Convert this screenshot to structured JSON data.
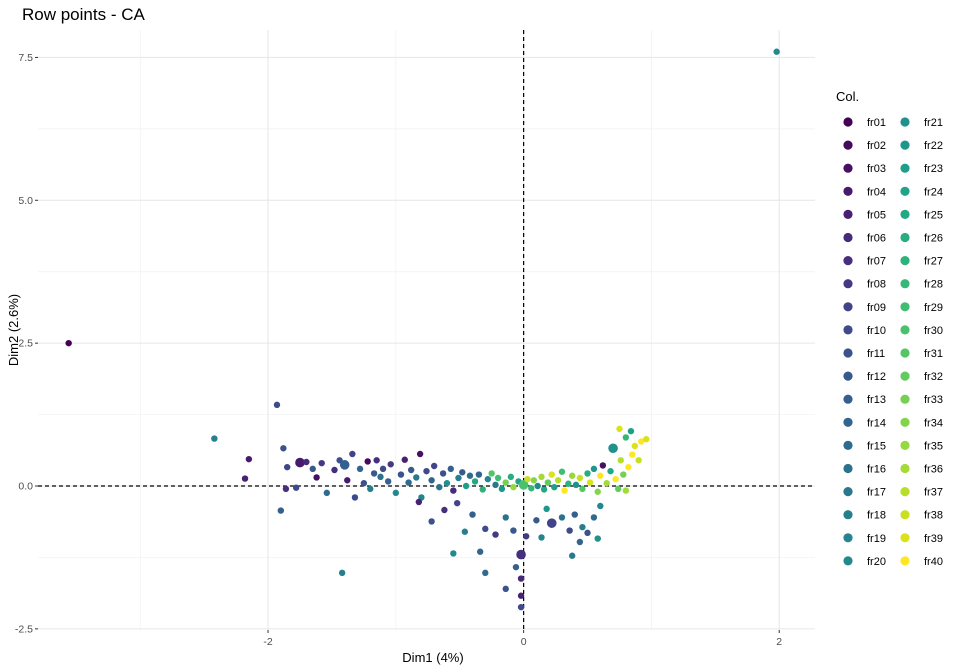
{
  "chart_data": {
    "type": "scatter",
    "title": "Row points - CA",
    "xlabel": "Dim1 (4%)",
    "ylabel": "Dim2 (2.6%)",
    "xlim": [
      -3.8,
      2.28
    ],
    "ylim": [
      -2.52,
      7.98
    ],
    "x_ticks": [
      {
        "value": -2,
        "label": "-2"
      },
      {
        "value": 0,
        "label": "0"
      },
      {
        "value": 2,
        "label": "2"
      }
    ],
    "y_ticks": [
      {
        "value": -2.5,
        "label": "-2.5"
      },
      {
        "value": 0,
        "label": "0.0"
      },
      {
        "value": 2.5,
        "label": "2.5"
      },
      {
        "value": 5,
        "label": "5.0"
      },
      {
        "value": 7.5,
        "label": "7.5"
      }
    ],
    "reference_lines": {
      "x": 0,
      "y": 0,
      "style": "dashed"
    },
    "grid": true,
    "legend": {
      "title": "Col.",
      "placement": "right",
      "columns": 2,
      "entries": [
        {
          "label": "fr01",
          "color": "#440154"
        },
        {
          "label": "fr02",
          "color": "#450b5a"
        },
        {
          "label": "fr03",
          "color": "#471163"
        },
        {
          "label": "fr04",
          "color": "#481a6c"
        },
        {
          "label": "fr05",
          "color": "#482173"
        },
        {
          "label": "fr06",
          "color": "#472a7a"
        },
        {
          "label": "fr07",
          "color": "#46307e"
        },
        {
          "label": "fr08",
          "color": "#443983"
        },
        {
          "label": "fr09",
          "color": "#414487"
        },
        {
          "label": "fr10",
          "color": "#3e4a89"
        },
        {
          "label": "fr11",
          "color": "#3b528b"
        },
        {
          "label": "fr12",
          "color": "#38598c"
        },
        {
          "label": "fr13",
          "color": "#355f8d"
        },
        {
          "label": "fr14",
          "color": "#32658e"
        },
        {
          "label": "fr15",
          "color": "#2f6b8e"
        },
        {
          "label": "fr16",
          "color": "#2c728e"
        },
        {
          "label": "fr17",
          "color": "#2a788e"
        },
        {
          "label": "fr18",
          "color": "#277f8e"
        },
        {
          "label": "fr19",
          "color": "#25848e"
        },
        {
          "label": "fr20",
          "color": "#228a8d"
        },
        {
          "label": "fr21",
          "color": "#21918c"
        },
        {
          "label": "fr22",
          "color": "#1f968b"
        },
        {
          "label": "fr23",
          "color": "#1f9e89"
        },
        {
          "label": "fr24",
          "color": "#20a386"
        },
        {
          "label": "fr25",
          "color": "#22a884"
        },
        {
          "label": "fr26",
          "color": "#27ad81"
        },
        {
          "label": "fr27",
          "color": "#2db27d"
        },
        {
          "label": "fr28",
          "color": "#35b779"
        },
        {
          "label": "fr29",
          "color": "#40bd72"
        },
        {
          "label": "fr30",
          "color": "#4ac16d"
        },
        {
          "label": "fr31",
          "color": "#55c667"
        },
        {
          "label": "fr32",
          "color": "#62cb5f"
        },
        {
          "label": "fr33",
          "color": "#75d054"
        },
        {
          "label": "fr34",
          "color": "#84d44b"
        },
        {
          "label": "fr35",
          "color": "#95d840"
        },
        {
          "label": "fr36",
          "color": "#a5db36"
        },
        {
          "label": "fr37",
          "color": "#b8de29"
        },
        {
          "label": "fr38",
          "color": "#c8e020"
        },
        {
          "label": "fr39",
          "color": "#dae319"
        },
        {
          "label": "fr40",
          "color": "#fde725"
        }
      ]
    },
    "points": [
      {
        "x": 1.98,
        "y": 7.6,
        "c": 19,
        "s": 1
      },
      {
        "x": -3.56,
        "y": 2.5,
        "c": 0,
        "s": 1
      },
      {
        "x": -1.93,
        "y": 1.42,
        "c": 9,
        "s": 1
      },
      {
        "x": -2.42,
        "y": 0.83,
        "c": 17,
        "s": 1
      },
      {
        "x": -1.88,
        "y": 0.66,
        "c": 10,
        "s": 1
      },
      {
        "x": -2.15,
        "y": 0.47,
        "c": 3,
        "s": 1
      },
      {
        "x": -2.18,
        "y": 0.13,
        "c": 4,
        "s": 1
      },
      {
        "x": -1.9,
        "y": -0.43,
        "c": 12,
        "s": 1
      },
      {
        "x": -1.86,
        "y": -0.05,
        "c": 6,
        "s": 1
      },
      {
        "x": -1.85,
        "y": 0.33,
        "c": 8,
        "s": 1
      },
      {
        "x": -1.78,
        "y": -0.03,
        "c": 9,
        "s": 1
      },
      {
        "x": -1.75,
        "y": 0.41,
        "c": 3,
        "s": 2
      },
      {
        "x": -1.7,
        "y": 0.42,
        "c": 5,
        "s": 1
      },
      {
        "x": -1.65,
        "y": 0.3,
        "c": 11,
        "s": 1
      },
      {
        "x": -1.62,
        "y": 0.15,
        "c": 2,
        "s": 1
      },
      {
        "x": -1.58,
        "y": 0.4,
        "c": 7,
        "s": 1
      },
      {
        "x": -1.54,
        "y": -0.12,
        "c": 14,
        "s": 1
      },
      {
        "x": -1.48,
        "y": 0.28,
        "c": 6,
        "s": 1
      },
      {
        "x": -1.44,
        "y": 0.45,
        "c": 10,
        "s": 1
      },
      {
        "x": -1.4,
        "y": 0.37,
        "c": 12,
        "s": 2
      },
      {
        "x": -1.38,
        "y": 0.1,
        "c": 3,
        "s": 1
      },
      {
        "x": -1.34,
        "y": 0.56,
        "c": 8,
        "s": 1
      },
      {
        "x": -1.32,
        "y": -0.2,
        "c": 9,
        "s": 1
      },
      {
        "x": -1.28,
        "y": 0.3,
        "c": 13,
        "s": 1
      },
      {
        "x": -1.25,
        "y": 0.05,
        "c": 10,
        "s": 1
      },
      {
        "x": -1.22,
        "y": 0.43,
        "c": 1,
        "s": 1
      },
      {
        "x": -1.2,
        "y": -0.05,
        "c": 17,
        "s": 1
      },
      {
        "x": -1.17,
        "y": 0.22,
        "c": 11,
        "s": 1
      },
      {
        "x": -1.15,
        "y": 0.45,
        "c": 6,
        "s": 1
      },
      {
        "x": -1.12,
        "y": 0.16,
        "c": 15,
        "s": 1
      },
      {
        "x": -1.1,
        "y": 0.3,
        "c": 9,
        "s": 1
      },
      {
        "x": -1.06,
        "y": 0.08,
        "c": 12,
        "s": 1
      },
      {
        "x": -1.04,
        "y": 0.38,
        "c": 7,
        "s": 1
      },
      {
        "x": -1.0,
        "y": -0.12,
        "c": 19,
        "s": 1
      },
      {
        "x": -0.96,
        "y": 0.2,
        "c": 10,
        "s": 1
      },
      {
        "x": -0.93,
        "y": 0.46,
        "c": 4,
        "s": 1
      },
      {
        "x": -0.9,
        "y": 0.06,
        "c": 14,
        "s": 1
      },
      {
        "x": -0.88,
        "y": 0.28,
        "c": 11,
        "s": 1
      },
      {
        "x": -0.84,
        "y": 0.15,
        "c": 16,
        "s": 1
      },
      {
        "x": -0.81,
        "y": 0.56,
        "c": 2,
        "s": 1
      },
      {
        "x": -0.8,
        "y": -0.2,
        "c": 18,
        "s": 1
      },
      {
        "x": -0.76,
        "y": 0.26,
        "c": 9,
        "s": 1
      },
      {
        "x": -0.72,
        "y": 0.1,
        "c": 13,
        "s": 1
      },
      {
        "x": -0.7,
        "y": 0.35,
        "c": 8,
        "s": 1
      },
      {
        "x": -0.66,
        "y": -0.02,
        "c": 15,
        "s": 1
      },
      {
        "x": -0.63,
        "y": 0.22,
        "c": 10,
        "s": 1
      },
      {
        "x": -0.6,
        "y": 0.05,
        "c": 20,
        "s": 1
      },
      {
        "x": -0.57,
        "y": 0.3,
        "c": 12,
        "s": 1
      },
      {
        "x": -0.55,
        "y": -0.08,
        "c": 5,
        "s": 1
      },
      {
        "x": -0.51,
        "y": 0.14,
        "c": 17,
        "s": 1
      },
      {
        "x": -0.48,
        "y": 0.24,
        "c": 11,
        "s": 1
      },
      {
        "x": -0.45,
        "y": 0.0,
        "c": 22,
        "s": 1
      },
      {
        "x": -0.42,
        "y": 0.18,
        "c": 14,
        "s": 1
      },
      {
        "x": -0.38,
        "y": 0.08,
        "c": 24,
        "s": 1
      },
      {
        "x": -0.35,
        "y": 0.2,
        "c": 13,
        "s": 1
      },
      {
        "x": -0.32,
        "y": -0.06,
        "c": 26,
        "s": 1
      },
      {
        "x": -0.28,
        "y": 0.12,
        "c": 18,
        "s": 1
      },
      {
        "x": -0.25,
        "y": 0.22,
        "c": 30,
        "s": 1
      },
      {
        "x": -0.22,
        "y": 0.02,
        "c": 16,
        "s": 1
      },
      {
        "x": -0.2,
        "y": 0.14,
        "c": 28,
        "s": 1
      },
      {
        "x": -0.17,
        "y": -0.05,
        "c": 21,
        "s": 1
      },
      {
        "x": -0.14,
        "y": 0.06,
        "c": 32,
        "s": 1
      },
      {
        "x": -0.1,
        "y": 0.16,
        "c": 25,
        "s": 1
      },
      {
        "x": -0.08,
        "y": -0.02,
        "c": 34,
        "s": 1
      },
      {
        "x": -0.04,
        "y": 0.08,
        "c": 23,
        "s": 1
      },
      {
        "x": 0.0,
        "y": 0.02,
        "c": 29,
        "s": 2
      },
      {
        "x": 0.03,
        "y": 0.12,
        "c": 37,
        "s": 1
      },
      {
        "x": 0.06,
        "y": -0.04,
        "c": 27,
        "s": 1
      },
      {
        "x": 0.08,
        "y": 0.1,
        "c": 33,
        "s": 1
      },
      {
        "x": 0.11,
        "y": 0.0,
        "c": 19,
        "s": 1
      },
      {
        "x": 0.14,
        "y": 0.16,
        "c": 35,
        "s": 1
      },
      {
        "x": 0.16,
        "y": -0.06,
        "c": 24,
        "s": 1
      },
      {
        "x": 0.19,
        "y": 0.06,
        "c": 31,
        "s": 1
      },
      {
        "x": 0.22,
        "y": 0.2,
        "c": 38,
        "s": 1
      },
      {
        "x": 0.24,
        "y": -0.02,
        "c": 22,
        "s": 1
      },
      {
        "x": 0.27,
        "y": 0.1,
        "c": 36,
        "s": 1
      },
      {
        "x": 0.3,
        "y": 0.25,
        "c": 28,
        "s": 1
      },
      {
        "x": 0.32,
        "y": -0.08,
        "c": 39,
        "s": 1
      },
      {
        "x": 0.35,
        "y": 0.04,
        "c": 26,
        "s": 1
      },
      {
        "x": 0.38,
        "y": 0.18,
        "c": 34,
        "s": 1
      },
      {
        "x": 0.41,
        "y": 0.02,
        "c": 20,
        "s": 1
      },
      {
        "x": 0.44,
        "y": 0.14,
        "c": 37,
        "s": 1
      },
      {
        "x": 0.46,
        "y": -0.05,
        "c": 30,
        "s": 1
      },
      {
        "x": 0.5,
        "y": 0.22,
        "c": 25,
        "s": 1
      },
      {
        "x": 0.52,
        "y": 0.06,
        "c": 38,
        "s": 1
      },
      {
        "x": 0.55,
        "y": 0.3,
        "c": 21,
        "s": 1
      },
      {
        "x": 0.58,
        "y": -0.1,
        "c": 33,
        "s": 1
      },
      {
        "x": 0.6,
        "y": 0.18,
        "c": 39,
        "s": 1
      },
      {
        "x": 0.62,
        "y": 0.36,
        "c": 2,
        "s": 1
      },
      {
        "x": 0.65,
        "y": 0.05,
        "c": 35,
        "s": 1
      },
      {
        "x": 0.68,
        "y": 0.26,
        "c": 24,
        "s": 1
      },
      {
        "x": 0.7,
        "y": 0.66,
        "c": 20,
        "s": 2
      },
      {
        "x": 0.72,
        "y": 0.12,
        "c": 39,
        "s": 1
      },
      {
        "x": 0.75,
        "y": 1.0,
        "c": 38,
        "s": 1
      },
      {
        "x": 0.76,
        "y": 0.45,
        "c": 36,
        "s": 1
      },
      {
        "x": 0.78,
        "y": 0.2,
        "c": 32,
        "s": 1
      },
      {
        "x": 0.8,
        "y": 0.85,
        "c": 27,
        "s": 1
      },
      {
        "x": 0.82,
        "y": 0.33,
        "c": 39,
        "s": 1
      },
      {
        "x": 0.84,
        "y": 0.96,
        "c": 22,
        "s": 1
      },
      {
        "x": 0.85,
        "y": 0.55,
        "c": 39,
        "s": 1
      },
      {
        "x": 0.87,
        "y": 0.7,
        "c": 38,
        "s": 1
      },
      {
        "x": 0.9,
        "y": 0.45,
        "c": 37,
        "s": 1
      },
      {
        "x": 0.92,
        "y": 0.78,
        "c": 39,
        "s": 1
      },
      {
        "x": 0.96,
        "y": 0.82,
        "c": 38,
        "s": 1
      },
      {
        "x": 0.74,
        "y": -0.05,
        "c": 31,
        "s": 1
      },
      {
        "x": 0.8,
        "y": -0.08,
        "c": 35,
        "s": 1
      },
      {
        "x": 0.6,
        "y": -0.35,
        "c": 19,
        "s": 1
      },
      {
        "x": 0.55,
        "y": -0.55,
        "c": 14,
        "s": 1
      },
      {
        "x": 0.46,
        "y": -0.72,
        "c": 17,
        "s": 1
      },
      {
        "x": 0.4,
        "y": -0.5,
        "c": 12,
        "s": 1
      },
      {
        "x": 0.36,
        "y": -0.78,
        "c": 9,
        "s": 1
      },
      {
        "x": 0.3,
        "y": -0.55,
        "c": 15,
        "s": 1
      },
      {
        "x": 0.22,
        "y": -0.65,
        "c": 8,
        "s": 2
      },
      {
        "x": 0.18,
        "y": -0.4,
        "c": 21,
        "s": 1
      },
      {
        "x": 0.14,
        "y": -0.9,
        "c": 18,
        "s": 1
      },
      {
        "x": 0.1,
        "y": -0.6,
        "c": 11,
        "s": 1
      },
      {
        "x": 0.44,
        "y": -0.98,
        "c": 13,
        "s": 1
      },
      {
        "x": 0.38,
        "y": -1.22,
        "c": 16,
        "s": 1
      },
      {
        "x": 0.5,
        "y": -0.82,
        "c": 10,
        "s": 1
      },
      {
        "x": 0.58,
        "y": -0.92,
        "c": 20,
        "s": 1
      },
      {
        "x": 0.02,
        "y": -0.88,
        "c": 7,
        "s": 1
      },
      {
        "x": -0.02,
        "y": -1.2,
        "c": 6,
        "s": 2
      },
      {
        "x": -0.06,
        "y": -1.42,
        "c": 12,
        "s": 1
      },
      {
        "x": -0.02,
        "y": -1.62,
        "c": 5,
        "s": 1
      },
      {
        "x": -0.02,
        "y": -1.92,
        "c": 4,
        "s": 1
      },
      {
        "x": -0.02,
        "y": -2.12,
        "c": 9,
        "s": 1
      },
      {
        "x": -0.14,
        "y": -1.8,
        "c": 10,
        "s": 1
      },
      {
        "x": -0.3,
        "y": -1.52,
        "c": 14,
        "s": 1
      },
      {
        "x": -0.34,
        "y": -1.15,
        "c": 13,
        "s": 1
      },
      {
        "x": -0.3,
        "y": -0.75,
        "c": 9,
        "s": 1
      },
      {
        "x": -0.22,
        "y": -0.85,
        "c": 7,
        "s": 1
      },
      {
        "x": -0.14,
        "y": -0.55,
        "c": 15,
        "s": 1
      },
      {
        "x": -0.08,
        "y": -0.78,
        "c": 11,
        "s": 1
      },
      {
        "x": -0.4,
        "y": -0.5,
        "c": 12,
        "s": 1
      },
      {
        "x": -0.46,
        "y": -0.8,
        "c": 17,
        "s": 1
      },
      {
        "x": -0.52,
        "y": -0.3,
        "c": 8,
        "s": 1
      },
      {
        "x": -0.55,
        "y": -1.18,
        "c": 19,
        "s": 1
      },
      {
        "x": -0.62,
        "y": -0.42,
        "c": 6,
        "s": 1
      },
      {
        "x": -0.72,
        "y": -0.62,
        "c": 10,
        "s": 1
      },
      {
        "x": -0.82,
        "y": -0.28,
        "c": 4,
        "s": 1
      },
      {
        "x": -1.42,
        "y": -1.52,
        "c": 17,
        "s": 1
      }
    ]
  }
}
